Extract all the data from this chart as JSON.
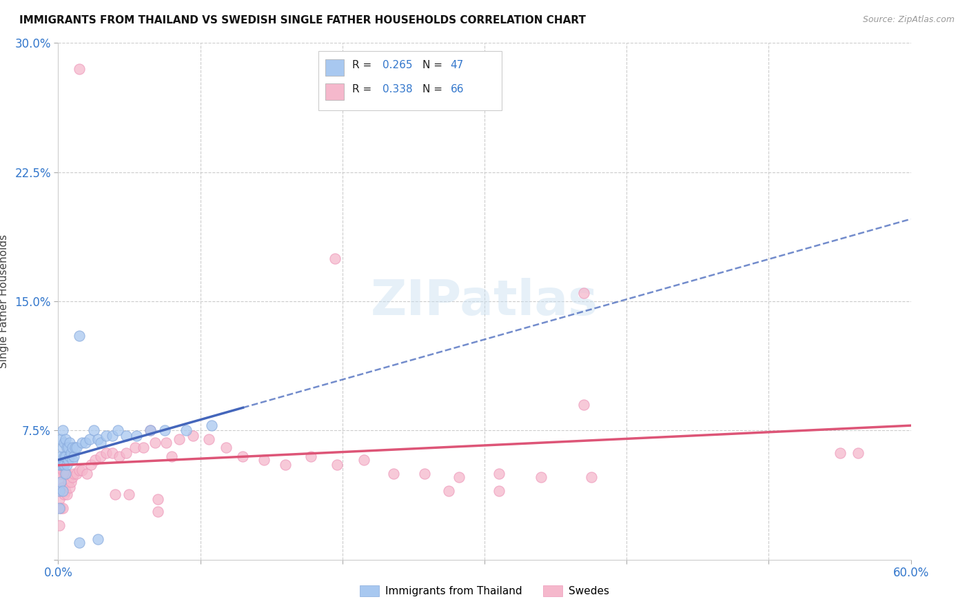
{
  "title": "IMMIGRANTS FROM THAILAND VS SWEDISH SINGLE FATHER HOUSEHOLDS CORRELATION CHART",
  "source": "Source: ZipAtlas.com",
  "ylabel": "Single Father Households",
  "xlim": [
    0.0,
    0.6
  ],
  "ylim": [
    0.0,
    0.3
  ],
  "xticks": [
    0.0,
    0.1,
    0.2,
    0.3,
    0.4,
    0.5,
    0.6
  ],
  "xticklabels": [
    "0.0%",
    "",
    "",
    "",
    "",
    "",
    "60.0%"
  ],
  "yticks": [
    0.0,
    0.075,
    0.15,
    0.225,
    0.3
  ],
  "yticklabels": [
    "",
    "7.5%",
    "15.0%",
    "22.5%",
    "30.0%"
  ],
  "blue_color": "#a8c8f0",
  "pink_color": "#f5b8cc",
  "blue_edge": "#88aadd",
  "pink_edge": "#ee99bb",
  "blue_line_color": "#4466bb",
  "pink_line_color": "#dd5577",
  "blue_R": "0.265",
  "blue_N": "47",
  "pink_R": "0.338",
  "pink_N": "66",
  "legend_label_blue": "Immigrants from Thailand",
  "legend_label_pink": "Swedes",
  "blue_x": [
    0.001,
    0.001,
    0.001,
    0.002,
    0.002,
    0.002,
    0.002,
    0.003,
    0.003,
    0.003,
    0.003,
    0.004,
    0.004,
    0.004,
    0.005,
    0.005,
    0.005,
    0.006,
    0.006,
    0.007,
    0.007,
    0.008,
    0.008,
    0.009,
    0.01,
    0.01,
    0.011,
    0.012,
    0.013,
    0.015,
    0.017,
    0.019,
    0.022,
    0.025,
    0.028,
    0.03,
    0.034,
    0.038,
    0.042,
    0.048,
    0.055,
    0.065,
    0.075,
    0.09,
    0.108,
    0.015,
    0.028
  ],
  "blue_y": [
    0.03,
    0.04,
    0.055,
    0.045,
    0.055,
    0.06,
    0.07,
    0.04,
    0.055,
    0.065,
    0.075,
    0.055,
    0.06,
    0.068,
    0.05,
    0.06,
    0.07,
    0.055,
    0.065,
    0.058,
    0.065,
    0.06,
    0.068,
    0.062,
    0.058,
    0.065,
    0.06,
    0.065,
    0.065,
    0.13,
    0.068,
    0.068,
    0.07,
    0.075,
    0.07,
    0.068,
    0.072,
    0.072,
    0.075,
    0.072,
    0.072,
    0.075,
    0.075,
    0.075,
    0.078,
    0.01,
    0.012
  ],
  "pink_x": [
    0.001,
    0.001,
    0.001,
    0.001,
    0.002,
    0.002,
    0.002,
    0.003,
    0.003,
    0.003,
    0.004,
    0.004,
    0.005,
    0.005,
    0.006,
    0.006,
    0.007,
    0.008,
    0.009,
    0.01,
    0.011,
    0.013,
    0.015,
    0.017,
    0.02,
    0.023,
    0.026,
    0.03,
    0.034,
    0.038,
    0.043,
    0.048,
    0.054,
    0.06,
    0.068,
    0.076,
    0.085,
    0.095,
    0.106,
    0.118,
    0.13,
    0.145,
    0.16,
    0.178,
    0.196,
    0.215,
    0.236,
    0.258,
    0.282,
    0.31,
    0.34,
    0.375,
    0.275,
    0.31,
    0.55,
    0.563,
    0.195,
    0.37,
    0.37,
    0.065,
    0.04,
    0.05,
    0.07,
    0.07,
    0.08,
    0.015
  ],
  "pink_y": [
    0.02,
    0.035,
    0.045,
    0.055,
    0.03,
    0.04,
    0.05,
    0.03,
    0.042,
    0.052,
    0.038,
    0.05,
    0.04,
    0.05,
    0.038,
    0.05,
    0.045,
    0.042,
    0.045,
    0.048,
    0.05,
    0.05,
    0.052,
    0.052,
    0.05,
    0.055,
    0.058,
    0.06,
    0.062,
    0.062,
    0.06,
    0.062,
    0.065,
    0.065,
    0.068,
    0.068,
    0.07,
    0.072,
    0.07,
    0.065,
    0.06,
    0.058,
    0.055,
    0.06,
    0.055,
    0.058,
    0.05,
    0.05,
    0.048,
    0.05,
    0.048,
    0.048,
    0.04,
    0.04,
    0.062,
    0.062,
    0.175,
    0.09,
    0.155,
    0.075,
    0.038,
    0.038,
    0.035,
    0.028,
    0.06,
    0.285
  ]
}
